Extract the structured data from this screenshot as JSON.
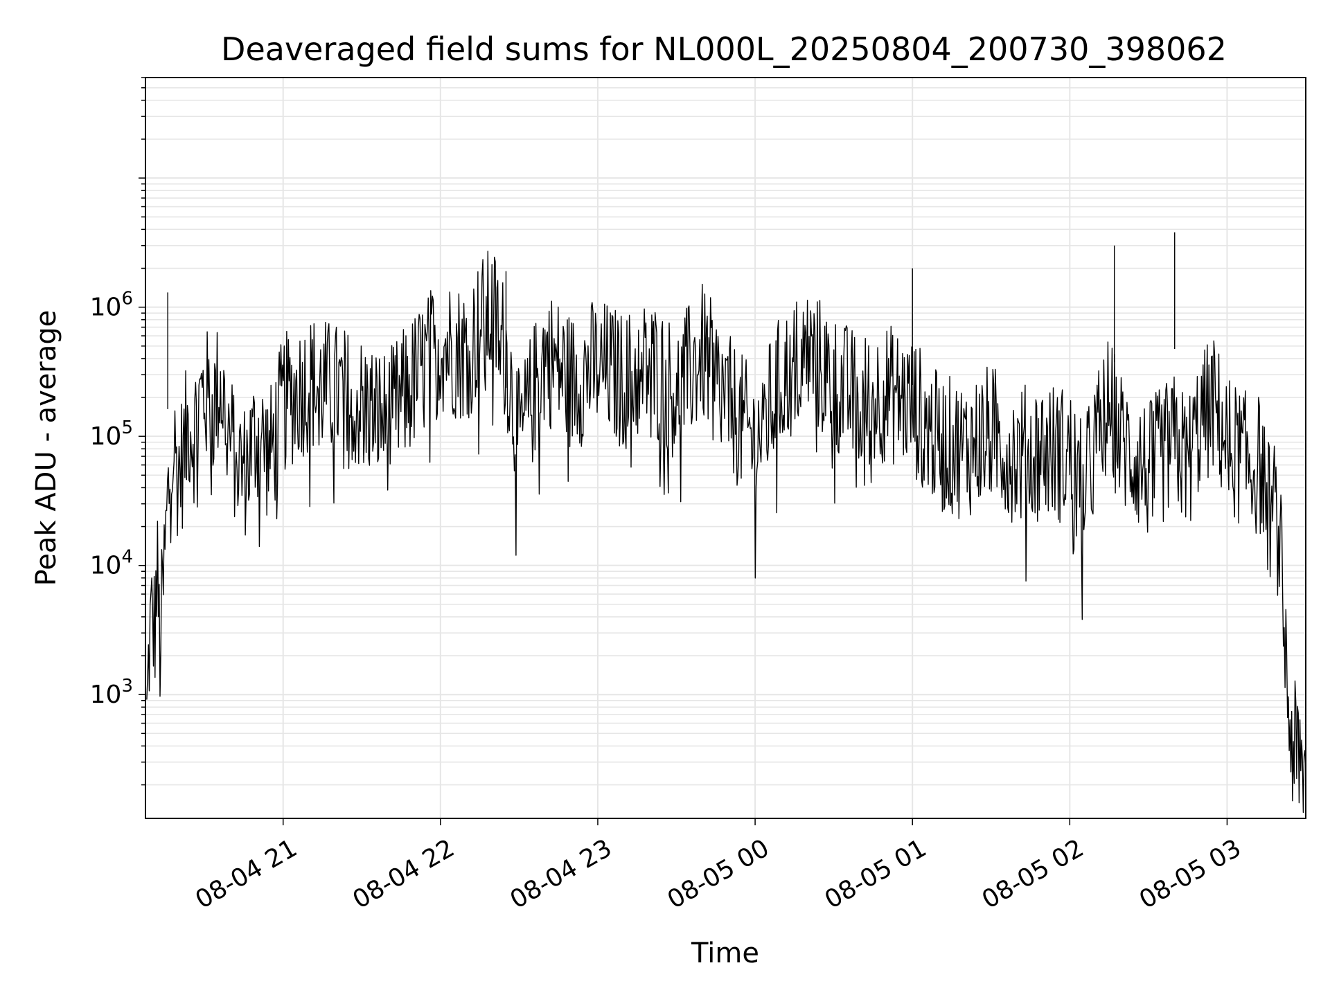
{
  "chart_data": {
    "type": "line",
    "title": "Deaveraged field sums for NL000L_20250804_200730_398062",
    "xlabel": "Time",
    "ylabel": "Peak ADU - average",
    "y_scale": "log",
    "ylim": [
      110,
      60000000
    ],
    "xlim": [
      "2025-08-04 20:07:30",
      "2025-08-05 03:30:00"
    ],
    "grid": true,
    "line_color": "#000000",
    "x_ticks": [
      {
        "label": "08-04 21",
        "time": "2025-08-04 21:00"
      },
      {
        "label": "08-04 22",
        "time": "2025-08-04 22:00"
      },
      {
        "label": "08-04 23",
        "time": "2025-08-04 23:00"
      },
      {
        "label": "08-05 00",
        "time": "2025-08-05 00:00"
      },
      {
        "label": "08-05 01",
        "time": "2025-08-05 01:00"
      },
      {
        "label": "08-05 02",
        "time": "2025-08-05 02:00"
      },
      {
        "label": "08-05 03",
        "time": "2025-08-05 03:00"
      }
    ],
    "y_ticks": [
      {
        "base": "10",
        "exp": "3",
        "value": 1000
      },
      {
        "base": "10",
        "exp": "4",
        "value": 10000
      },
      {
        "base": "10",
        "exp": "5",
        "value": 100000
      },
      {
        "base": "10",
        "exp": "6",
        "value": 1000000
      }
    ],
    "series": [
      {
        "x": [
          "2025-08-04 20:08",
          "2025-08-04 20:09",
          "2025-08-04 20:10",
          "2025-08-04 20:11",
          "2025-08-04 20:12",
          "2025-08-04 20:13",
          "2025-08-04 20:14",
          "2025-08-04 20:16",
          "2025-08-04 20:18",
          "2025-08-04 20:20",
          "2025-08-04 20:22",
          "2025-08-04 20:24",
          "2025-08-04 20:26",
          "2025-08-04 20:28",
          "2025-08-04 20:30",
          "2025-08-04 20:33",
          "2025-08-04 20:36",
          "2025-08-04 20:40",
          "2025-08-04 20:45",
          "2025-08-04 20:50",
          "2025-08-04 20:55",
          "2025-08-04 21:00",
          "2025-08-04 21:10",
          "2025-08-04 21:20",
          "2025-08-04 21:30",
          "2025-08-04 21:40",
          "2025-08-04 21:50",
          "2025-08-04 22:00",
          "2025-08-04 22:10",
          "2025-08-04 22:15",
          "2025-08-04 22:20",
          "2025-08-04 22:25",
          "2025-08-04 22:30",
          "2025-08-04 22:40",
          "2025-08-04 22:50",
          "2025-08-04 23:00",
          "2025-08-04 23:10",
          "2025-08-04 23:20",
          "2025-08-04 23:30",
          "2025-08-04 23:40",
          "2025-08-04 23:50",
          "2025-08-05 00:00",
          "2025-08-05 00:10",
          "2025-08-05 00:20",
          "2025-08-05 00:30",
          "2025-08-05 00:40",
          "2025-08-05 00:50",
          "2025-08-05 01:00",
          "2025-08-05 01:10",
          "2025-08-05 01:20",
          "2025-08-05 01:30",
          "2025-08-05 01:40",
          "2025-08-05 01:50",
          "2025-08-05 02:00",
          "2025-08-05 02:05",
          "2025-08-05 02:10",
          "2025-08-05 02:15",
          "2025-08-05 02:20",
          "2025-08-05 02:30",
          "2025-08-05 02:35",
          "2025-08-05 02:40",
          "2025-08-05 02:45",
          "2025-08-05 02:50",
          "2025-08-05 02:55",
          "2025-08-05 03:00",
          "2025-08-05 03:05",
          "2025-08-05 03:08",
          "2025-08-05 03:10",
          "2025-08-05 03:12",
          "2025-08-05 03:14",
          "2025-08-05 03:16",
          "2025-08-05 03:18",
          "2025-08-05 03:20",
          "2025-08-05 03:22",
          "2025-08-05 03:24",
          "2025-08-05 03:26",
          "2025-08-05 03:28",
          "2025-08-05 03:30"
        ],
        "y": [
          700,
          3000,
          4500,
          3500,
          10000,
          2500,
          6000,
          35000,
          100000,
          60000,
          80000,
          150000,
          120000,
          200000,
          250000,
          180000,
          300000,
          100000,
          60000,
          120000,
          80000,
          200000,
          300000,
          250000,
          200000,
          150000,
          300000,
          600000,
          500000,
          800000,
          1000000,
          500000,
          100000,
          500000,
          300000,
          400000,
          300000,
          400000,
          250000,
          500000,
          200000,
          100000,
          300000,
          500000,
          300000,
          200000,
          250000,
          200000,
          100000,
          90000,
          120000,
          80000,
          90000,
          80000,
          40000,
          100000,
          200000,
          100000,
          60000,
          80000,
          100000,
          70000,
          150000,
          200000,
          100000,
          80000,
          70000,
          65000,
          70000,
          55000,
          30000,
          30000,
          20000,
          3000,
          600,
          400,
          350,
          250
        ]
      }
    ],
    "peaks": [
      {
        "x": "2025-08-04 20:16",
        "y": 1300000
      },
      {
        "x": "2025-08-04 22:25",
        "y": 1900000
      },
      {
        "x": "2025-08-05 01:00",
        "y": 2000000
      },
      {
        "x": "2025-08-05 02:17",
        "y": 3000000
      },
      {
        "x": "2025-08-05 02:40",
        "y": 3800000
      }
    ]
  }
}
